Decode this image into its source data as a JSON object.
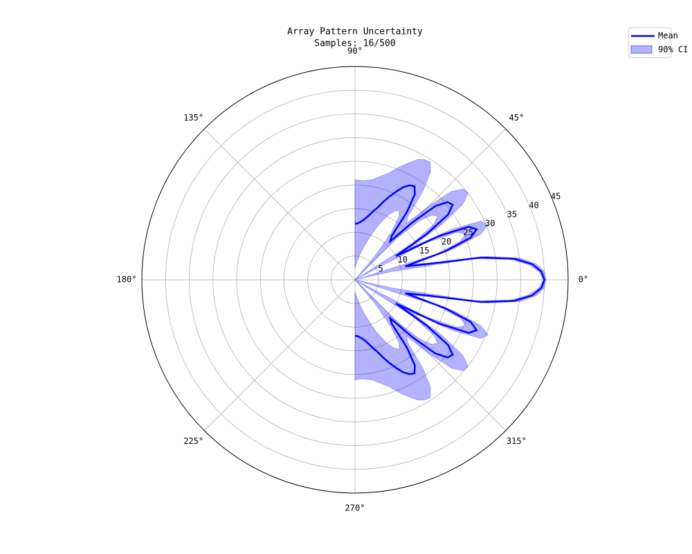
{
  "chart_data": {
    "type": "polar",
    "title": "Array Pattern Uncertainty",
    "subtitle": "Samples: 16/500",
    "theta": [
      -90,
      -87.5,
      -85,
      -82.5,
      -80,
      -77.5,
      -75,
      -72.5,
      -70,
      -67.5,
      -65,
      -62.5,
      -60,
      -57.5,
      -55,
      -52.5,
      -50,
      -47.5,
      -45,
      -42.5,
      -40,
      -37.5,
      -35,
      -32.5,
      -30,
      -27.5,
      -25,
      -22.5,
      -20,
      -17.5,
      -15,
      -12.5,
      -10,
      -7.5,
      -5,
      -2.5,
      0,
      2.5,
      5,
      7.5,
      10,
      12.5,
      15,
      17.5,
      20,
      22.5,
      25,
      27.5,
      30,
      32.5,
      35,
      37.5,
      40,
      42.5,
      45,
      47.5,
      50,
      52.5,
      55,
      57.5,
      60,
      62.5,
      65,
      67.5,
      70,
      72.5,
      75,
      77.5,
      80,
      82.5,
      85,
      87.5,
      90
    ],
    "series": [
      {
        "name": "Mean",
        "color": "#0000ff",
        "values": [
          11.8,
          11.9,
          12.2,
          12.6,
          13.2,
          14,
          15,
          16,
          17.5,
          19,
          20.5,
          22,
          23,
          23.4,
          22,
          18,
          12,
          11,
          17,
          23,
          25.5,
          26,
          24,
          18,
          10,
          20,
          26.5,
          27.8,
          26,
          20,
          11,
          15,
          27,
          34,
          37.6,
          39.4,
          40,
          39.4,
          37.6,
          34,
          27,
          15,
          11,
          20,
          26,
          27.8,
          26.5,
          20,
          10,
          18,
          24,
          26,
          25.5,
          23,
          17,
          11,
          12,
          18,
          22,
          23.4,
          23,
          22,
          20.5,
          19,
          17.5,
          16,
          15,
          14,
          13.2,
          12.6,
          12.2,
          11.9,
          11.8
        ]
      },
      {
        "name": "90% CI",
        "color": "#0000ff",
        "upper": [
          21.1,
          21,
          21,
          21.2,
          21.5,
          22.1,
          22.8,
          23.6,
          24.8,
          26.1,
          27.3,
          28.6,
          29.3,
          29.5,
          27.8,
          23.6,
          17.3,
          16.1,
          21.8,
          27.6,
          29.8,
          30.1,
          27.8,
          21.6,
          13.3,
          23.1,
          29.3,
          30.4,
          28.3,
          22.1,
          12.8,
          16.6,
          28.3,
          35.1,
          38.4,
          40,
          40.3,
          40,
          38.4,
          35.1,
          28.3,
          16.6,
          12.8,
          22.1,
          28.3,
          30.4,
          29.3,
          23.1,
          13.3,
          21.6,
          27.8,
          30.1,
          29.8,
          27.6,
          21.8,
          16.1,
          17.3,
          23.6,
          27.8,
          29.5,
          29.3,
          28.6,
          27.3,
          26.1,
          24.8,
          23.6,
          22.8,
          22.1,
          21.5,
          21.2,
          21,
          21,
          21.1
        ],
        "lower": [
          2.5,
          2.9,
          3.4,
          4.1,
          4.9,
          6,
          7.2,
          8.5,
          10.2,
          12,
          13.7,
          15.5,
          16.7,
          17.4,
          16.2,
          12.5,
          6.7,
          0,
          12.2,
          18.5,
          21.2,
          22,
          20.2,
          14.5,
          0,
          17,
          23.7,
          25.3,
          23.7,
          18,
          0,
          8,
          25.7,
          33,
          36.8,
          38.9,
          39.7,
          38.9,
          36.8,
          33,
          25.7,
          8,
          0,
          18,
          23.7,
          25.3,
          23.7,
          17,
          0,
          14.5,
          20.2,
          22,
          21.2,
          18.5,
          12.2,
          0,
          6.7,
          12.5,
          16.2,
          17.4,
          16.7,
          15.5,
          13.7,
          12,
          10.2,
          8.5,
          7.2,
          6,
          4.9,
          4.1,
          3.4,
          2.9,
          2.5
        ]
      }
    ],
    "rlim": [
      0,
      45
    ],
    "rticks": [
      5,
      10,
      15,
      20,
      25,
      30,
      35,
      40,
      45
    ],
    "thetaticks": [
      {
        "value": 0,
        "label": "0°"
      },
      {
        "value": 45,
        "label": "45°"
      },
      {
        "value": 90,
        "label": "90°"
      },
      {
        "value": 135,
        "label": "135°"
      },
      {
        "value": 180,
        "label": "180°"
      },
      {
        "value": 225,
        "label": "225°"
      },
      {
        "value": 270,
        "label": "270°"
      },
      {
        "value": 315,
        "label": "315°"
      }
    ],
    "grid": true,
    "legend": "upper right"
  }
}
